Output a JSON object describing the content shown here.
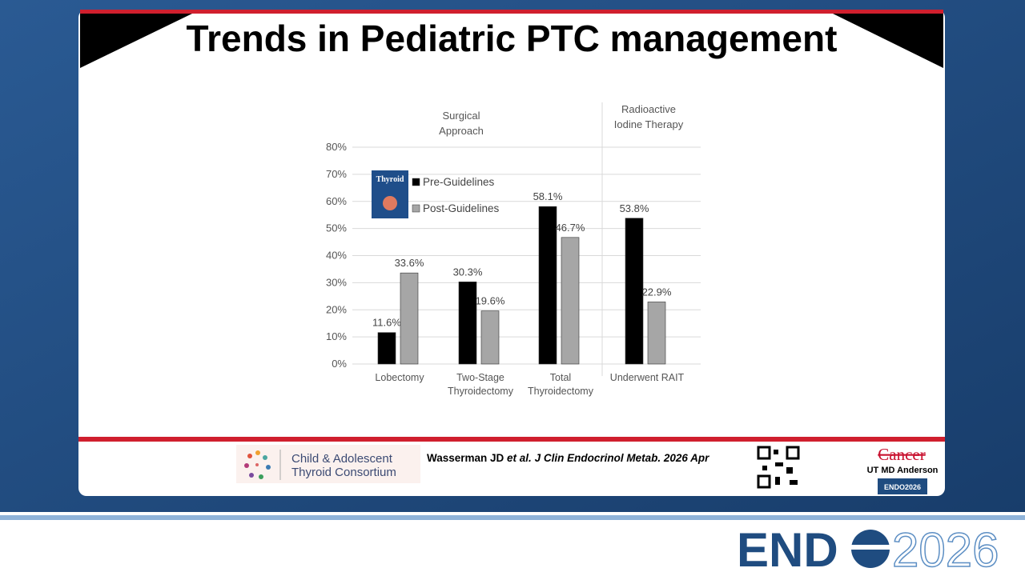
{
  "slide": {
    "title": "Trends in Pediatric PTC management",
    "citation": {
      "authors": "Wasserman JD ",
      "etal": "et al.",
      "source": " J Clin Endocrinol Metab. 2026 Apr"
    },
    "consortium": [
      "Child & Adolescent",
      "Thyroid Consortium"
    ],
    "institution": {
      "name": "Cancer",
      "sub": "UT MD Anderson",
      "badge": "ENDO2026"
    },
    "journal_thumb": "Thyroid",
    "footer_logo": {
      "left": "END",
      "right": "2026"
    }
  },
  "chart_data": {
    "type": "bar",
    "annotations": [
      "Surgical Approach",
      "Radioactive Iodine Therapy"
    ],
    "categories": [
      "Lobectomy",
      "Two-Stage Thyroidectomy",
      "Total Thyroidectomy",
      "Underwent RAIT"
    ],
    "series": [
      {
        "name": "Pre-Guidelines",
        "color": "#000000",
        "values": [
          11.6,
          30.3,
          58.1,
          53.8
        ],
        "value_labels": [
          "11.6%",
          "30.3%",
          "58.1%",
          "53.8%"
        ]
      },
      {
        "name": "Post-Guidelines",
        "color": "#a6a6a6",
        "values": [
          33.6,
          19.6,
          46.7,
          22.9
        ],
        "value_labels": [
          "33.6%",
          "19.6%",
          "46.7%",
          "22.9%"
        ]
      }
    ],
    "ylim": [
      0,
      80
    ],
    "yticks": [
      {
        "value": 0,
        "label": "0%"
      },
      {
        "value": 10,
        "label": "10%"
      },
      {
        "value": 20,
        "label": "20%"
      },
      {
        "value": 30,
        "label": "30%"
      },
      {
        "value": 40,
        "label": "40%"
      },
      {
        "value": 50,
        "label": "50%"
      },
      {
        "value": 60,
        "label": "60%"
      },
      {
        "value": 70,
        "label": "70%"
      },
      {
        "value": 80,
        "label": "80%"
      }
    ],
    "grid": true
  }
}
